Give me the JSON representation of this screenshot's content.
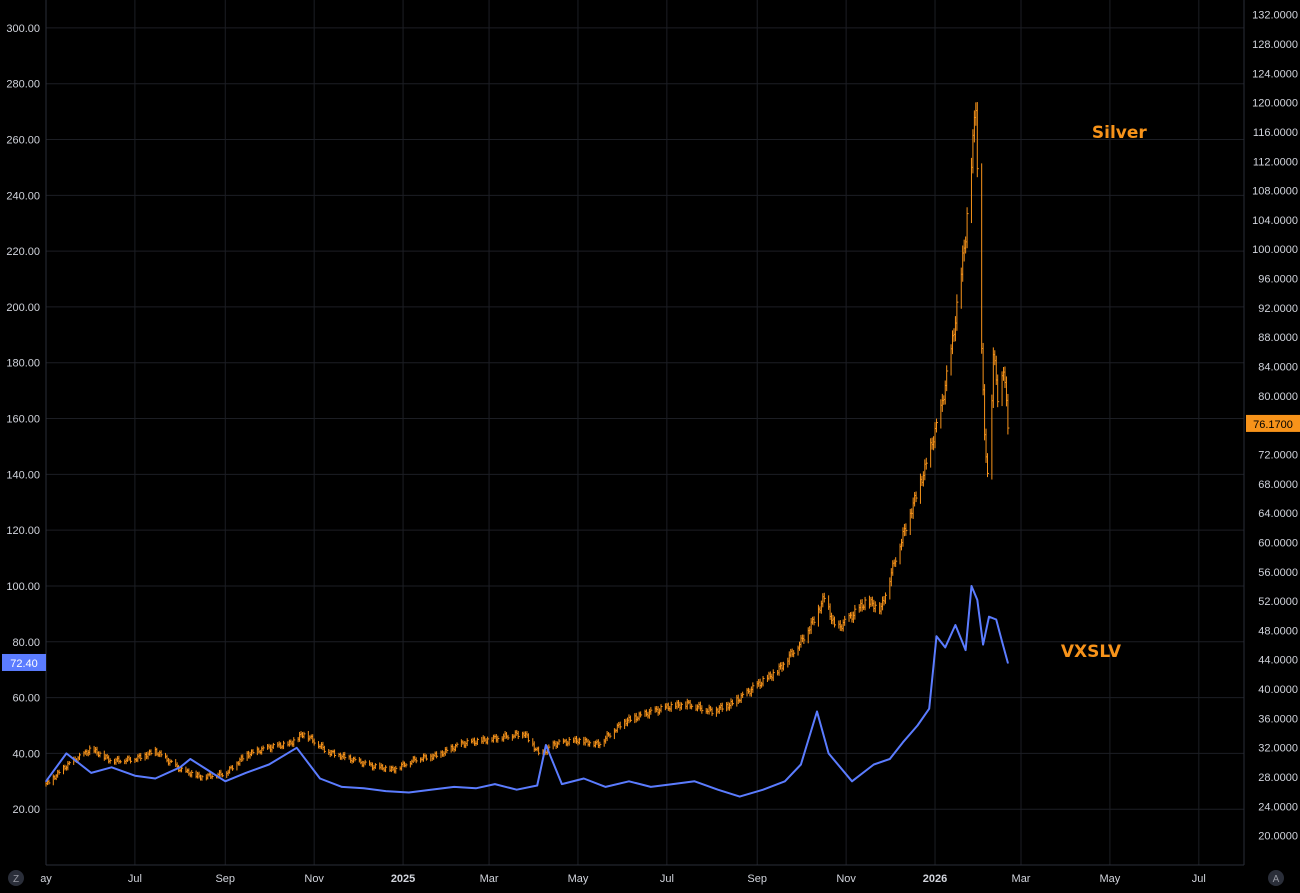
{
  "chart_data": {
    "type": "line",
    "xlim": [
      "2024-05-01",
      "2026-08-01"
    ],
    "x_ticks": [
      {
        "label": "ay",
        "date": "2024-05-01",
        "bold": false
      },
      {
        "label": "Jul",
        "date": "2024-07-01",
        "bold": false
      },
      {
        "label": "Sep",
        "date": "2024-09-01",
        "bold": false
      },
      {
        "label": "Nov",
        "date": "2024-11-01",
        "bold": false
      },
      {
        "label": "2025",
        "date": "2025-01-01",
        "bold": true
      },
      {
        "label": "Mar",
        "date": "2025-03-01",
        "bold": false
      },
      {
        "label": "May",
        "date": "2025-05-01",
        "bold": false
      },
      {
        "label": "Jul",
        "date": "2025-07-01",
        "bold": false
      },
      {
        "label": "Sep",
        "date": "2025-09-01",
        "bold": false
      },
      {
        "label": "Nov",
        "date": "2025-11-01",
        "bold": false
      },
      {
        "label": "2026",
        "date": "2026-01-01",
        "bold": true
      },
      {
        "label": "Mar",
        "date": "2026-03-01",
        "bold": false
      },
      {
        "label": "May",
        "date": "2026-05-01",
        "bold": false
      },
      {
        "label": "Jul",
        "date": "2026-07-01",
        "bold": false
      }
    ],
    "left_axis": {
      "ylim": [
        0,
        310
      ],
      "ticks": [
        "300.00",
        "280.00",
        "260.00",
        "240.00",
        "220.00",
        "200.00",
        "180.00",
        "160.00",
        "140.00",
        "120.00",
        "100.00",
        "80.00",
        "60.00",
        "40.00",
        "20.00"
      ],
      "last_value": "72.40"
    },
    "right_axis": {
      "ylim": [
        16,
        134
      ],
      "ticks": [
        "132.0000",
        "128.0000",
        "124.0000",
        "120.0000",
        "116.0000",
        "112.0000",
        "108.0000",
        "104.0000",
        "100.0000",
        "96.0000",
        "92.0000",
        "88.0000",
        "84.0000",
        "80.0000",
        "76.0000",
        "72.0000",
        "68.0000",
        "64.0000",
        "60.0000",
        "56.0000",
        "52.0000",
        "48.0000",
        "44.0000",
        "40.0000",
        "36.0000",
        "32.0000",
        "28.0000",
        "24.0000",
        "20.0000"
      ],
      "last_value": "76.1700"
    },
    "series": [
      {
        "name": "Silver",
        "axis": "right",
        "style": "ohlc-bars",
        "color": "#f7931a",
        "x": [
          "2024-05-01",
          "2024-05-15",
          "2024-06-01",
          "2024-06-15",
          "2024-07-01",
          "2024-07-15",
          "2024-08-01",
          "2024-08-15",
          "2024-09-01",
          "2024-09-15",
          "2024-10-01",
          "2024-10-15",
          "2024-10-25",
          "2024-11-10",
          "2024-11-25",
          "2024-12-10",
          "2024-12-25",
          "2025-01-10",
          "2025-01-25",
          "2025-02-10",
          "2025-02-25",
          "2025-03-10",
          "2025-03-25",
          "2025-04-05",
          "2025-04-15",
          "2025-05-01",
          "2025-05-15",
          "2025-06-01",
          "2025-06-15",
          "2025-07-01",
          "2025-07-15",
          "2025-08-01",
          "2025-08-15",
          "2025-09-01",
          "2025-09-15",
          "2025-10-01",
          "2025-10-10",
          "2025-10-17",
          "2025-10-25",
          "2025-11-05",
          "2025-11-15",
          "2025-11-25",
          "2025-12-05",
          "2025-12-15",
          "2025-12-25",
          "2026-01-05",
          "2026-01-12",
          "2026-01-18",
          "2026-01-22",
          "2026-01-26",
          "2026-01-29",
          "2026-02-01",
          "2026-02-04",
          "2026-02-07",
          "2026-02-10",
          "2026-02-13",
          "2026-02-17",
          "2026-02-20"
        ],
        "values": [
          27.0,
          29.5,
          31.8,
          30.2,
          30.5,
          31.5,
          29.0,
          28.0,
          28.5,
          31.0,
          32.0,
          32.5,
          34.0,
          31.5,
          30.5,
          29.5,
          29.0,
          30.5,
          31.0,
          32.5,
          33.0,
          33.5,
          34.0,
          31.0,
          32.5,
          33.0,
          32.5,
          35.5,
          36.5,
          37.5,
          38.0,
          37.0,
          38.0,
          40.5,
          42.5,
          46.5,
          49.5,
          52.5,
          48.0,
          50.0,
          52.0,
          51.0,
          58.0,
          64.0,
          70.0,
          78.0,
          86.0,
          95.0,
          102.0,
          112.0,
          120.0,
          94.0,
          74.0,
          68.0,
          86.0,
          80.0,
          84.0,
          76.17
        ]
      },
      {
        "name": "VXSLV",
        "axis": "left",
        "style": "line",
        "color": "#5b7cff",
        "x": [
          "2024-05-01",
          "2024-05-15",
          "2024-06-01",
          "2024-06-15",
          "2024-07-01",
          "2024-07-15",
          "2024-08-01",
          "2024-08-08",
          "2024-08-20",
          "2024-09-01",
          "2024-09-15",
          "2024-10-01",
          "2024-10-20",
          "2024-11-05",
          "2024-11-20",
          "2024-12-05",
          "2024-12-20",
          "2025-01-05",
          "2025-01-20",
          "2025-02-05",
          "2025-02-20",
          "2025-03-05",
          "2025-03-20",
          "2025-04-03",
          "2025-04-09",
          "2025-04-20",
          "2025-05-05",
          "2025-05-20",
          "2025-06-05",
          "2025-06-20",
          "2025-07-05",
          "2025-07-20",
          "2025-08-05",
          "2025-08-20",
          "2025-09-05",
          "2025-09-20",
          "2025-10-01",
          "2025-10-12",
          "2025-10-20",
          "2025-11-05",
          "2025-11-20",
          "2025-12-01",
          "2025-12-10",
          "2025-12-20",
          "2025-12-28",
          "2026-01-02",
          "2026-01-08",
          "2026-01-15",
          "2026-01-22",
          "2026-01-26",
          "2026-01-30",
          "2026-02-03",
          "2026-02-07",
          "2026-02-12",
          "2026-02-16",
          "2026-02-20"
        ],
        "values": [
          30.0,
          40.0,
          33.0,
          35.0,
          32.0,
          31.0,
          35.0,
          38.0,
          34.0,
          30.0,
          33.0,
          36.0,
          42.0,
          31.0,
          28.0,
          27.5,
          26.5,
          26.0,
          27.0,
          28.0,
          27.5,
          29.0,
          27.0,
          28.5,
          43.0,
          29.0,
          31.0,
          28.0,
          30.0,
          28.0,
          29.0,
          30.0,
          27.0,
          24.5,
          27.0,
          30.0,
          36.0,
          55.0,
          40.0,
          30.0,
          36.0,
          38.0,
          44.0,
          50.0,
          56.0,
          82.0,
          78.0,
          86.0,
          77.0,
          100.0,
          95.0,
          79.0,
          89.0,
          88.0,
          80.0,
          72.4
        ]
      }
    ],
    "annotations": [
      {
        "text": "Silver",
        "color": "#f7931a"
      },
      {
        "text": "VXSLV",
        "color": "#f7931a"
      }
    ],
    "grid": true,
    "background": "#000000"
  },
  "corner": {
    "left_button": "Z",
    "right_button": "A"
  }
}
